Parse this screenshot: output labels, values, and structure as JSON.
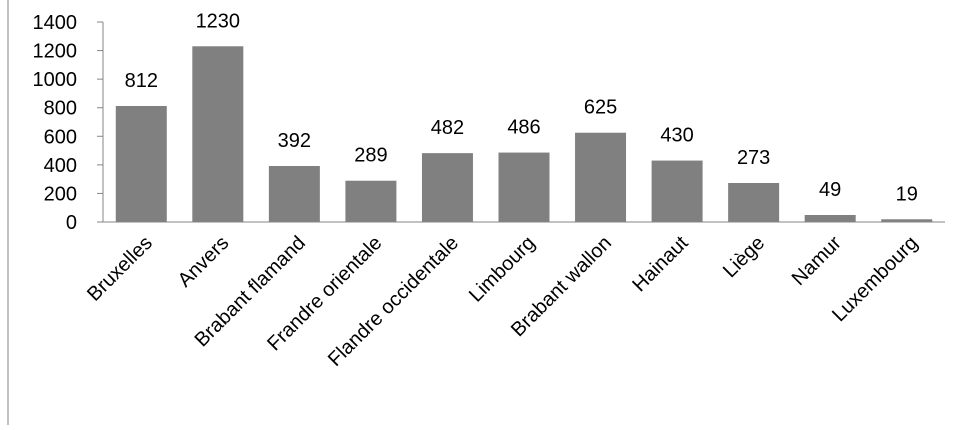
{
  "chart_data": {
    "type": "bar",
    "title": "",
    "xlabel": "",
    "ylabel": "",
    "categories": [
      "Bruxelles",
      "Anvers",
      "Brabant flamand",
      "Frandre orientale",
      "Flandre occidentale",
      "Limbourg",
      "Brabant wallon",
      "Hainaut",
      "Liège",
      "Namur",
      "Luxembourg"
    ],
    "values": [
      812,
      1230,
      392,
      289,
      482,
      486,
      625,
      430,
      273,
      49,
      19
    ],
    "data_labels": [
      "812",
      "1230",
      "392",
      "289",
      "482",
      "486",
      "625",
      "430",
      "273",
      "49",
      "19"
    ],
    "ylim": [
      0,
      1400
    ],
    "yticks": [
      0,
      200,
      400,
      600,
      800,
      1000,
      1200,
      1400
    ],
    "ytick_labels": [
      "0",
      "200",
      "400",
      "600",
      "800",
      "1000",
      "1200",
      "1400"
    ],
    "grid": false,
    "legend": "none",
    "bar_color": "#808080",
    "axis_color": "#868686"
  }
}
